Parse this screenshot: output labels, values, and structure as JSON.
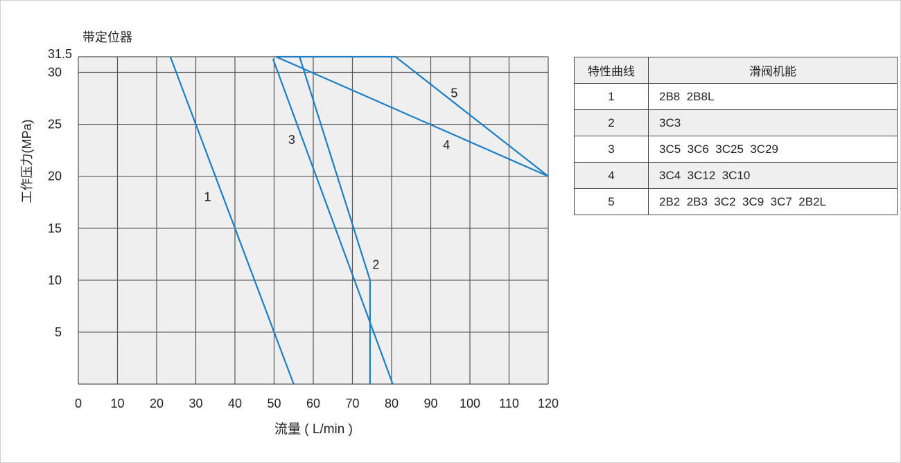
{
  "chart_data": {
    "type": "line",
    "title": "带定位器",
    "xlabel": "流量 ( L/min )",
    "ylabel": "工作压力(MPa)",
    "xlim": [
      0,
      120
    ],
    "ylim": [
      0,
      31.5
    ],
    "xticks": [
      0,
      10,
      20,
      30,
      40,
      50,
      60,
      70,
      80,
      90,
      100,
      110,
      120
    ],
    "yticks": [
      5,
      10,
      15,
      20,
      25,
      30,
      31.5
    ],
    "ytick_labels": [
      "5",
      "10",
      "15",
      "20",
      "25",
      "30",
      "31.5"
    ],
    "grid": true,
    "line_color": "#1a7fc9",
    "plot_background": "#efefef",
    "series": [
      {
        "name": "1",
        "points": [
          [
            23.5,
            31.5
          ],
          [
            55,
            0
          ]
        ],
        "label_at": [
          33,
          18
        ]
      },
      {
        "name": "2",
        "points": [
          [
            56.5,
            31.5
          ],
          [
            74.5,
            10
          ],
          [
            74.5,
            0
          ]
        ],
        "label_at": [
          76,
          11.5
        ]
      },
      {
        "name": "3",
        "points": [
          [
            49.7,
            31.3
          ],
          [
            80.3,
            0
          ]
        ],
        "label_at": [
          54.5,
          23.5
        ]
      },
      {
        "name": "4",
        "points": [
          [
            50.5,
            31.5
          ],
          [
            120,
            20
          ]
        ],
        "label_at": [
          94,
          23
        ]
      },
      {
        "name": "5",
        "points": [
          [
            50.5,
            31.5
          ],
          [
            81,
            31.5
          ],
          [
            120,
            20
          ]
        ],
        "label_at": [
          96,
          28
        ]
      }
    ]
  },
  "table": {
    "headers": [
      "特性曲线",
      "滑阀机能"
    ],
    "rows": [
      [
        "1",
        "2B8  2B8L"
      ],
      [
        "2",
        "3C3"
      ],
      [
        "3",
        "3C5  3C6  3C25  3C29"
      ],
      [
        "4",
        "3C4  3C12  3C10"
      ],
      [
        "5",
        "2B2  2B3  3C2  3C9  3C7  2B2L"
      ]
    ]
  }
}
